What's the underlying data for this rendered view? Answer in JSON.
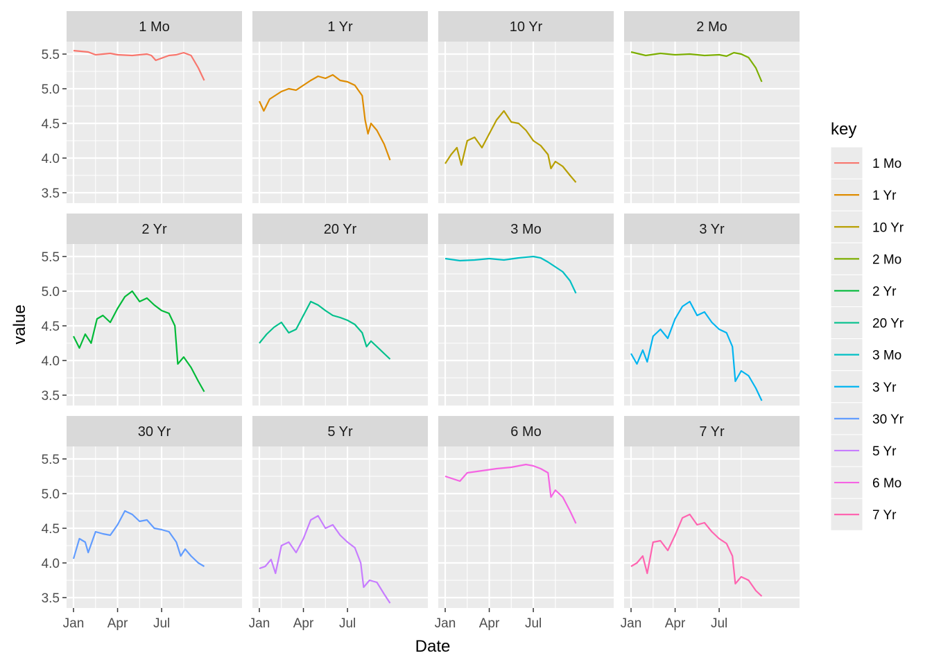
{
  "chart_data": {
    "type": "line",
    "facet_layout": "3 rows x 4 columns (facet_wrap)",
    "xlabel": "Date",
    "ylabel": "value",
    "x_ticks": [
      "Jan",
      "Apr",
      "Jul"
    ],
    "y_ticks": [
      "3.5",
      "4.0",
      "4.5",
      "5.0",
      "5.5"
    ],
    "ylim": [
      3.35,
      5.68
    ],
    "xlim_months": [
      0,
      11
    ],
    "panel_background": "#ebebeb",
    "strip_background": "#d9d9d9",
    "grid": "white major and minor gridlines",
    "legend": {
      "title": "key",
      "position": "right"
    },
    "series": [
      {
        "name": "1 Mo",
        "color": "#F8766D",
        "points": [
          [
            0,
            5.55
          ],
          [
            1,
            5.53
          ],
          [
            1.5,
            5.49
          ],
          [
            2.5,
            5.51
          ],
          [
            3,
            5.49
          ],
          [
            4,
            5.48
          ],
          [
            5,
            5.5
          ],
          [
            5.3,
            5.48
          ],
          [
            5.6,
            5.41
          ],
          [
            6.5,
            5.48
          ],
          [
            7,
            5.49
          ],
          [
            7.5,
            5.52
          ],
          [
            8,
            5.48
          ],
          [
            8.5,
            5.3
          ],
          [
            8.9,
            5.12
          ]
        ]
      },
      {
        "name": "1 Yr",
        "color": "#DE8C00",
        "points": [
          [
            0,
            4.82
          ],
          [
            0.3,
            4.68
          ],
          [
            0.7,
            4.85
          ],
          [
            1.5,
            4.96
          ],
          [
            2,
            5.0
          ],
          [
            2.5,
            4.98
          ],
          [
            3,
            5.05
          ],
          [
            3.5,
            5.12
          ],
          [
            4,
            5.18
          ],
          [
            4.5,
            5.15
          ],
          [
            5,
            5.2
          ],
          [
            5.5,
            5.12
          ],
          [
            6,
            5.1
          ],
          [
            6.5,
            5.05
          ],
          [
            7,
            4.9
          ],
          [
            7.2,
            4.55
          ],
          [
            7.4,
            4.35
          ],
          [
            7.6,
            4.5
          ],
          [
            8,
            4.4
          ],
          [
            8.5,
            4.2
          ],
          [
            8.9,
            3.97
          ]
        ]
      },
      {
        "name": "10 Yr",
        "color": "#B79F00",
        "points": [
          [
            0,
            3.92
          ],
          [
            0.4,
            4.05
          ],
          [
            0.8,
            4.15
          ],
          [
            1.1,
            3.9
          ],
          [
            1.5,
            4.25
          ],
          [
            2,
            4.3
          ],
          [
            2.5,
            4.15
          ],
          [
            3,
            4.35
          ],
          [
            3.5,
            4.55
          ],
          [
            4,
            4.68
          ],
          [
            4.5,
            4.52
          ],
          [
            5,
            4.5
          ],
          [
            5.5,
            4.4
          ],
          [
            6,
            4.25
          ],
          [
            6.5,
            4.18
          ],
          [
            7,
            4.05
          ],
          [
            7.2,
            3.85
          ],
          [
            7.5,
            3.95
          ],
          [
            8,
            3.88
          ],
          [
            8.5,
            3.75
          ],
          [
            8.9,
            3.65
          ]
        ]
      },
      {
        "name": "2 Mo",
        "color": "#7CAE00",
        "points": [
          [
            0,
            5.53
          ],
          [
            1,
            5.48
          ],
          [
            2,
            5.51
          ],
          [
            3,
            5.49
          ],
          [
            4,
            5.5
          ],
          [
            5,
            5.48
          ],
          [
            6,
            5.49
          ],
          [
            6.5,
            5.47
          ],
          [
            7,
            5.52
          ],
          [
            7.5,
            5.5
          ],
          [
            8,
            5.45
          ],
          [
            8.5,
            5.3
          ],
          [
            8.9,
            5.1
          ]
        ]
      },
      {
        "name": "2 Yr",
        "color": "#00BA38",
        "points": [
          [
            0,
            4.35
          ],
          [
            0.4,
            4.18
          ],
          [
            0.8,
            4.38
          ],
          [
            1.2,
            4.25
          ],
          [
            1.6,
            4.6
          ],
          [
            2,
            4.65
          ],
          [
            2.5,
            4.55
          ],
          [
            3,
            4.75
          ],
          [
            3.5,
            4.92
          ],
          [
            4,
            5.0
          ],
          [
            4.5,
            4.85
          ],
          [
            5,
            4.9
          ],
          [
            5.5,
            4.8
          ],
          [
            6,
            4.72
          ],
          [
            6.5,
            4.68
          ],
          [
            6.9,
            4.5
          ],
          [
            7.1,
            3.95
          ],
          [
            7.5,
            4.05
          ],
          [
            8,
            3.9
          ],
          [
            8.5,
            3.7
          ],
          [
            8.9,
            3.55
          ]
        ]
      },
      {
        "name": "20 Yr",
        "color": "#00C08B",
        "points": [
          [
            0,
            4.25
          ],
          [
            0.5,
            4.38
          ],
          [
            1,
            4.48
          ],
          [
            1.5,
            4.55
          ],
          [
            2,
            4.4
          ],
          [
            2.5,
            4.45
          ],
          [
            3,
            4.65
          ],
          [
            3.5,
            4.85
          ],
          [
            4,
            4.8
          ],
          [
            4.5,
            4.72
          ],
          [
            5,
            4.65
          ],
          [
            5.5,
            4.62
          ],
          [
            6,
            4.58
          ],
          [
            6.5,
            4.52
          ],
          [
            7,
            4.4
          ],
          [
            7.3,
            4.2
          ],
          [
            7.6,
            4.28
          ],
          [
            8,
            4.2
          ],
          [
            8.5,
            4.1
          ],
          [
            8.9,
            4.02
          ]
        ]
      },
      {
        "name": "3 Mo",
        "color": "#00BFC4",
        "points": [
          [
            0,
            5.47
          ],
          [
            1,
            5.44
          ],
          [
            2,
            5.45
          ],
          [
            3,
            5.47
          ],
          [
            4,
            5.45
          ],
          [
            5,
            5.48
          ],
          [
            6,
            5.5
          ],
          [
            6.5,
            5.48
          ],
          [
            7,
            5.42
          ],
          [
            7.5,
            5.35
          ],
          [
            8,
            5.28
          ],
          [
            8.5,
            5.15
          ],
          [
            8.9,
            4.97
          ]
        ]
      },
      {
        "name": "3 Yr",
        "color": "#00B4F0",
        "points": [
          [
            0,
            4.1
          ],
          [
            0.4,
            3.95
          ],
          [
            0.8,
            4.15
          ],
          [
            1.1,
            3.98
          ],
          [
            1.5,
            4.35
          ],
          [
            2,
            4.45
          ],
          [
            2.5,
            4.32
          ],
          [
            3,
            4.6
          ],
          [
            3.5,
            4.78
          ],
          [
            4,
            4.85
          ],
          [
            4.5,
            4.65
          ],
          [
            5,
            4.7
          ],
          [
            5.5,
            4.55
          ],
          [
            6,
            4.45
          ],
          [
            6.5,
            4.4
          ],
          [
            6.9,
            4.2
          ],
          [
            7.1,
            3.7
          ],
          [
            7.5,
            3.85
          ],
          [
            8,
            3.78
          ],
          [
            8.5,
            3.6
          ],
          [
            8.9,
            3.42
          ]
        ]
      },
      {
        "name": "30 Yr",
        "color": "#619CFF",
        "points": [
          [
            0,
            4.06
          ],
          [
            0.4,
            4.35
          ],
          [
            0.8,
            4.3
          ],
          [
            1,
            4.15
          ],
          [
            1.5,
            4.45
          ],
          [
            2,
            4.42
          ],
          [
            2.5,
            4.4
          ],
          [
            3,
            4.55
          ],
          [
            3.5,
            4.75
          ],
          [
            4,
            4.7
          ],
          [
            4.5,
            4.6
          ],
          [
            5,
            4.62
          ],
          [
            5.5,
            4.5
          ],
          [
            6,
            4.48
          ],
          [
            6.5,
            4.45
          ],
          [
            7,
            4.3
          ],
          [
            7.3,
            4.1
          ],
          [
            7.6,
            4.2
          ],
          [
            8,
            4.1
          ],
          [
            8.5,
            4.0
          ],
          [
            8.9,
            3.95
          ]
        ]
      },
      {
        "name": "5 Yr",
        "color": "#C77CFF",
        "points": [
          [
            0,
            3.92
          ],
          [
            0.4,
            3.95
          ],
          [
            0.8,
            4.05
          ],
          [
            1.1,
            3.85
          ],
          [
            1.5,
            4.25
          ],
          [
            2,
            4.3
          ],
          [
            2.5,
            4.15
          ],
          [
            3,
            4.35
          ],
          [
            3.5,
            4.62
          ],
          [
            4,
            4.68
          ],
          [
            4.5,
            4.5
          ],
          [
            5,
            4.55
          ],
          [
            5.5,
            4.4
          ],
          [
            6,
            4.3
          ],
          [
            6.5,
            4.22
          ],
          [
            6.9,
            4.0
          ],
          [
            7.1,
            3.65
          ],
          [
            7.5,
            3.75
          ],
          [
            8,
            3.72
          ],
          [
            8.5,
            3.55
          ],
          [
            8.9,
            3.42
          ]
        ]
      },
      {
        "name": "6 Mo",
        "color": "#F564E3",
        "points": [
          [
            0,
            5.25
          ],
          [
            1,
            5.18
          ],
          [
            1.5,
            5.3
          ],
          [
            2.5,
            5.33
          ],
          [
            3.5,
            5.36
          ],
          [
            4.5,
            5.38
          ],
          [
            5,
            5.4
          ],
          [
            5.5,
            5.42
          ],
          [
            6,
            5.4
          ],
          [
            6.5,
            5.36
          ],
          [
            7,
            5.3
          ],
          [
            7.2,
            4.95
          ],
          [
            7.5,
            5.05
          ],
          [
            8,
            4.95
          ],
          [
            8.5,
            4.75
          ],
          [
            8.9,
            4.57
          ]
        ]
      },
      {
        "name": "7 Yr",
        "color": "#FF64B0",
        "points": [
          [
            0,
            3.95
          ],
          [
            0.4,
            4.0
          ],
          [
            0.8,
            4.1
          ],
          [
            1.1,
            3.85
          ],
          [
            1.5,
            4.3
          ],
          [
            2,
            4.32
          ],
          [
            2.5,
            4.18
          ],
          [
            3,
            4.4
          ],
          [
            3.5,
            4.65
          ],
          [
            4,
            4.7
          ],
          [
            4.5,
            4.55
          ],
          [
            5,
            4.58
          ],
          [
            5.5,
            4.45
          ],
          [
            6,
            4.35
          ],
          [
            6.5,
            4.28
          ],
          [
            6.9,
            4.1
          ],
          [
            7.1,
            3.7
          ],
          [
            7.5,
            3.8
          ],
          [
            8,
            3.75
          ],
          [
            8.5,
            3.6
          ],
          [
            8.9,
            3.52
          ]
        ]
      }
    ]
  }
}
